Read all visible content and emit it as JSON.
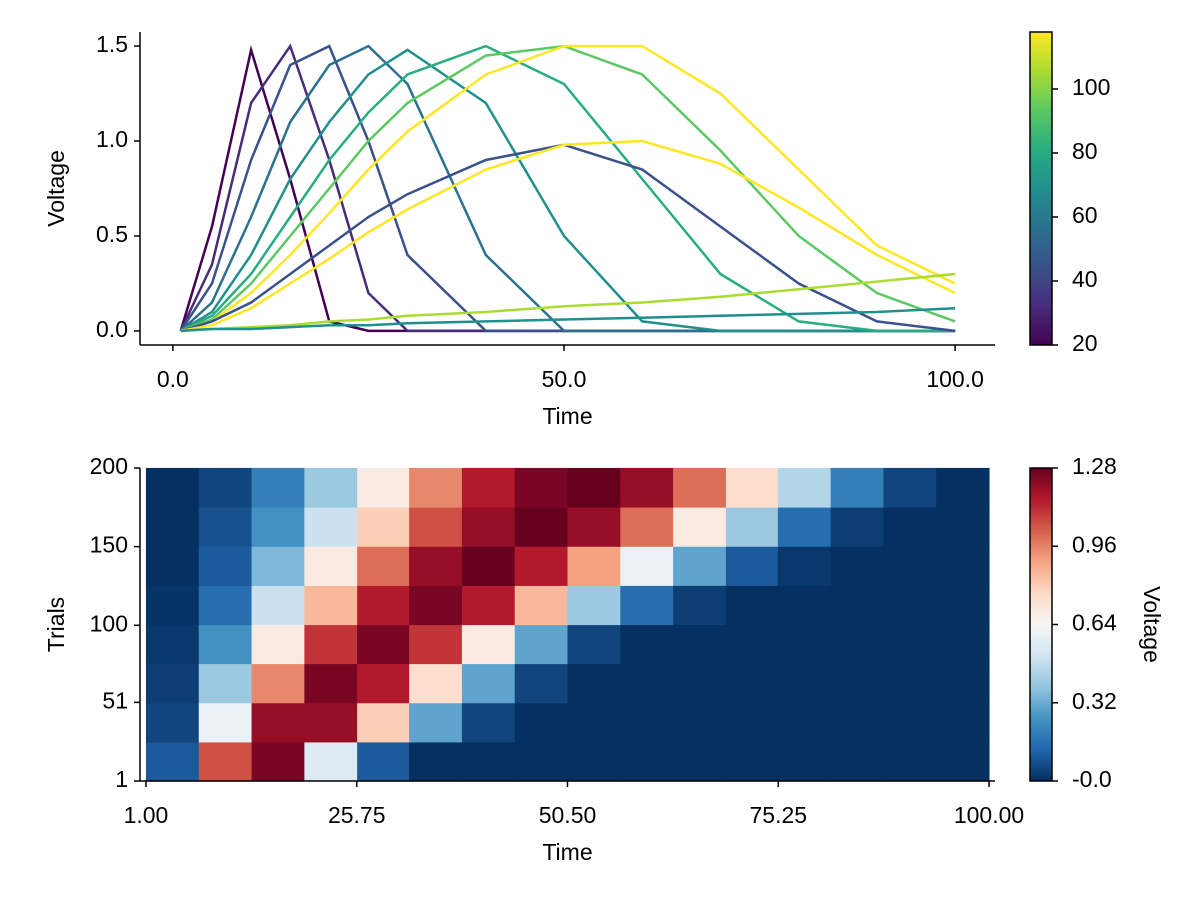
{
  "chart_data": [
    {
      "type": "line",
      "xlabel": "Time",
      "ylabel": "Voltage",
      "x": [
        1,
        5,
        10,
        15,
        20,
        25,
        30,
        40,
        50,
        60,
        70,
        80,
        90,
        100
      ],
      "series": [
        {
          "color": "#440154",
          "values": [
            0,
            0.55,
            1.48,
            0.8,
            0.05,
            0,
            0,
            0,
            0,
            0,
            0,
            0,
            0,
            0
          ]
        },
        {
          "color": "#472c7a",
          "values": [
            0,
            0.35,
            1.2,
            1.5,
            0.9,
            0.2,
            0,
            0,
            0,
            0,
            0,
            0,
            0,
            0
          ]
        },
        {
          "color": "#3b518b",
          "values": [
            0,
            0.25,
            0.9,
            1.4,
            1.5,
            1.0,
            0.4,
            0,
            0,
            0,
            0,
            0,
            0,
            0
          ]
        },
        {
          "color": "#2c718e",
          "values": [
            0,
            0.15,
            0.6,
            1.1,
            1.4,
            1.5,
            1.3,
            0.4,
            0,
            0,
            0,
            0,
            0,
            0
          ]
        },
        {
          "color": "#21908d",
          "values": [
            0,
            0.1,
            0.4,
            0.8,
            1.1,
            1.35,
            1.48,
            1.2,
            0.5,
            0.05,
            0,
            0,
            0,
            0
          ]
        },
        {
          "color": "#27ad81",
          "values": [
            0,
            0.08,
            0.3,
            0.6,
            0.9,
            1.15,
            1.35,
            1.5,
            1.3,
            0.8,
            0.3,
            0.05,
            0,
            0
          ]
        },
        {
          "color": "#5cc863",
          "values": [
            0,
            0.06,
            0.25,
            0.5,
            0.75,
            1.0,
            1.2,
            1.45,
            1.5,
            1.35,
            0.95,
            0.5,
            0.2,
            0.05
          ]
        },
        {
          "color": "#fde725",
          "values": [
            0,
            0.05,
            0.2,
            0.4,
            0.62,
            0.85,
            1.05,
            1.35,
            1.5,
            1.5,
            1.25,
            0.85,
            0.45,
            0.25
          ]
        },
        {
          "color": "#3b518b",
          "values": [
            0,
            0.05,
            0.15,
            0.3,
            0.45,
            0.6,
            0.72,
            0.9,
            0.98,
            0.85,
            0.55,
            0.25,
            0.05,
            0
          ]
        },
        {
          "color": "#fde725",
          "values": [
            0,
            0.03,
            0.12,
            0.25,
            0.38,
            0.52,
            0.64,
            0.85,
            0.98,
            1.0,
            0.88,
            0.65,
            0.4,
            0.2
          ]
        },
        {
          "color": "#aadc32",
          "values": [
            0,
            0.01,
            0.02,
            0.03,
            0.05,
            0.06,
            0.08,
            0.1,
            0.13,
            0.15,
            0.18,
            0.22,
            0.26,
            0.3
          ]
        },
        {
          "color": "#21908d",
          "values": [
            0,
            0.01,
            0.01,
            0.02,
            0.03,
            0.03,
            0.04,
            0.05,
            0.06,
            0.07,
            0.08,
            0.09,
            0.1,
            0.12
          ]
        }
      ],
      "xlim": [
        -4.2,
        105.1
      ],
      "xticks": [
        {
          "value": 0,
          "label": "0.0"
        },
        {
          "value": 50,
          "label": "50.0"
        },
        {
          "value": 100,
          "label": "100.0"
        }
      ],
      "ylim": [
        -0.074,
        1.574
      ],
      "yticks": [
        {
          "value": 0,
          "label": "0.0"
        },
        0.5,
        {
          "value": 1,
          "label": "1.0"
        },
        1.5
      ],
      "colormap": [
        "#440154",
        "#472c7a",
        "#3b518b",
        "#2c718e",
        "#21908d",
        "#27ad81",
        "#5cc863",
        "#aadc32",
        "#fde725"
      ],
      "clim": [
        20,
        117.8
      ],
      "cticks": [
        20,
        40,
        60,
        80,
        100
      ]
    },
    {
      "type": "heatmap",
      "xlabel": "Time",
      "ylabel": "Trials",
      "colorbar_label": "Voltage",
      "x": [
        4.1,
        10.3,
        16.5,
        22.7,
        28.9,
        35.0,
        41.2,
        47.4,
        53.6,
        59.8,
        66.0,
        72.2,
        78.3,
        84.5,
        90.7,
        96.9
      ],
      "y": [
        13.4,
        38.3,
        63.2,
        88.1,
        112.9,
        137.8,
        162.7,
        187.6
      ],
      "values": [
        [
          0.1,
          1.05,
          1.25,
          0.55,
          0.1,
          0,
          0,
          0,
          0,
          0,
          0,
          0,
          0,
          0,
          0,
          0
        ],
        [
          0.05,
          0.6,
          1.2,
          1.2,
          0.8,
          0.3,
          0.05,
          0,
          0,
          0,
          0,
          0,
          0,
          0,
          0,
          0
        ],
        [
          0.03,
          0.4,
          0.95,
          1.25,
          1.15,
          0.75,
          0.3,
          0.05,
          0,
          0,
          0,
          0,
          0,
          0,
          0,
          0
        ],
        [
          0.02,
          0.25,
          0.7,
          1.1,
          1.25,
          1.1,
          0.7,
          0.3,
          0.05,
          0,
          0,
          0,
          0,
          0,
          0,
          0
        ],
        [
          0.01,
          0.15,
          0.5,
          0.85,
          1.15,
          1.25,
          1.15,
          0.85,
          0.4,
          0.15,
          0.03,
          0,
          0,
          0,
          0,
          0
        ],
        [
          0,
          0.1,
          0.35,
          0.7,
          1.0,
          1.2,
          1.28,
          1.15,
          0.9,
          0.6,
          0.3,
          0.1,
          0.02,
          0,
          0,
          0
        ],
        [
          0,
          0.08,
          0.25,
          0.5,
          0.8,
          1.05,
          1.2,
          1.28,
          1.2,
          1.0,
          0.7,
          0.4,
          0.15,
          0.03,
          0,
          0
        ],
        [
          0,
          0.05,
          0.2,
          0.4,
          0.7,
          0.95,
          1.15,
          1.25,
          1.28,
          1.2,
          1.0,
          0.75,
          0.45,
          0.2,
          0.05,
          0
        ]
      ],
      "xlim": [
        0.3,
        100.7
      ],
      "xticks": [
        {
          "value": 1,
          "label": "1.00"
        },
        25.75,
        {
          "value": 50.5,
          "label": "50.50"
        },
        75.25,
        {
          "value": 100,
          "label": "100.00"
        }
      ],
      "ylim": [
        1,
        200
      ],
      "yticks": [
        1,
        51,
        100,
        150,
        200
      ],
      "colormap": [
        "#053061",
        "#2166ac",
        "#4393c3",
        "#92c5de",
        "#d1e5f0",
        "#f7f7f7",
        "#fddbc7",
        "#f4a582",
        "#d6604d",
        "#b2182b",
        "#67001f"
      ],
      "clim": [
        0,
        1.28
      ],
      "cticks": [
        {
          "value": 0,
          "label": "-0.0"
        },
        0.32,
        0.64,
        0.96,
        1.28
      ]
    }
  ]
}
